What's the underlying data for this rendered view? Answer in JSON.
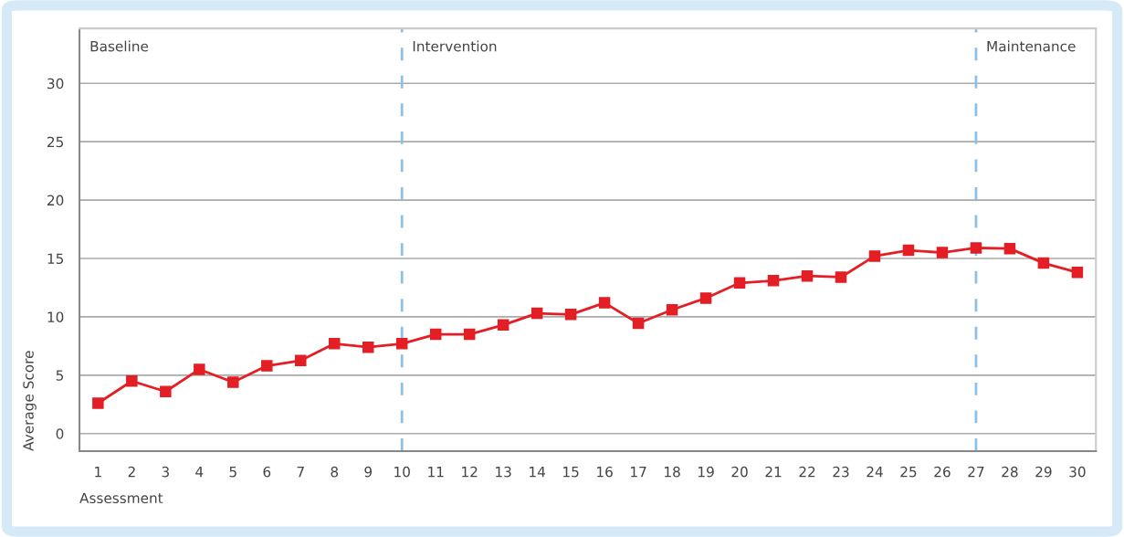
{
  "chart_data": {
    "type": "line",
    "xlabel": "Assessment",
    "ylabel": "Average Score",
    "categories": [
      "1",
      "2",
      "3",
      "4",
      "5",
      "6",
      "7",
      "8",
      "9",
      "10",
      "11",
      "12",
      "13",
      "14",
      "15",
      "16",
      "17",
      "18",
      "19",
      "20",
      "21",
      "22",
      "23",
      "24",
      "25",
      "26",
      "27",
      "28",
      "29",
      "30"
    ],
    "series": [
      {
        "color": "#e31e24",
        "values": [
          2.6,
          4.5,
          3.6,
          5.5,
          4.4,
          5.8,
          6.25,
          7.7,
          7.4,
          7.7,
          8.5,
          8.5,
          9.3,
          10.3,
          10.2,
          11.2,
          9.45,
          10.6,
          11.6,
          12.9,
          13.1,
          13.5,
          13.4,
          15.2,
          15.7,
          15.5,
          15.9,
          15.85,
          14.6,
          13.8
        ]
      }
    ],
    "ylim": [
      -1.5,
      34.7
    ],
    "yticks": [
      0,
      5,
      10,
      15,
      20,
      25,
      30
    ],
    "grid": "y",
    "marker": "square",
    "line_style": "solid",
    "ref_lines": [
      {
        "axis": "x",
        "value": "10",
        "color": "#8cc0e8",
        "line_style": "dashed"
      },
      {
        "axis": "x",
        "value": "27",
        "color": "#8cc0e8",
        "line_style": "dashed"
      }
    ],
    "annotations": [
      "Baseline",
      "Intervention",
      "Maintenance"
    ]
  }
}
